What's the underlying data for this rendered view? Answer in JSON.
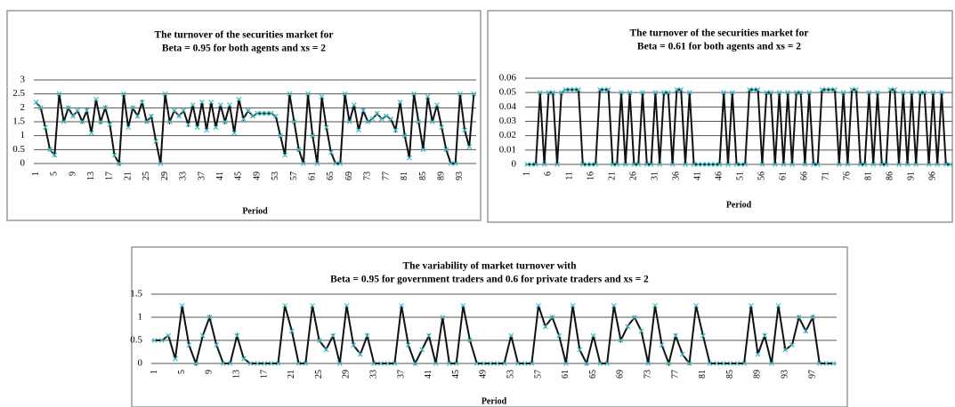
{
  "chart_data": [
    {
      "type": "line",
      "title": [
        "The turnover of the securities market for",
        "Beta = 0.95 for both agents and xs = 2"
      ],
      "x_label": "Period",
      "color": "#111111",
      "marker_color": "#3fbcc4",
      "ylim": [
        0,
        3
      ],
      "yticks": [
        0,
        0.5,
        1,
        1.5,
        2,
        2.5,
        3
      ],
      "grid": true,
      "categories": [
        "1",
        null,
        null,
        null,
        "5",
        null,
        null,
        null,
        "9",
        null,
        null,
        null,
        "13",
        null,
        null,
        null,
        "17",
        null,
        null,
        null,
        "21",
        null,
        null,
        null,
        "25",
        null,
        null,
        null,
        "29",
        null,
        null,
        null,
        "33",
        null,
        null,
        null,
        "37",
        null,
        null,
        null,
        "41",
        null,
        null,
        null,
        "45",
        null,
        null,
        null,
        "49",
        null,
        null,
        null,
        "53",
        null,
        null,
        null,
        "57",
        null,
        null,
        null,
        "61",
        null,
        null,
        null,
        "65",
        null,
        null,
        null,
        "69",
        null,
        null,
        null,
        "73",
        null,
        null,
        null,
        "77",
        null,
        null,
        null,
        "81",
        null,
        null,
        null,
        "85",
        null,
        null,
        null,
        "89",
        null,
        null,
        null,
        "93",
        null,
        null,
        null
      ],
      "values": [
        2.2,
        2.0,
        1.3,
        0.5,
        0.3,
        2.5,
        1.5,
        2.0,
        1.7,
        1.9,
        1.5,
        1.9,
        1.1,
        2.3,
        1.5,
        2.0,
        1.4,
        0.3,
        0,
        2.5,
        1.3,
        2.0,
        1.7,
        2.2,
        1.5,
        1.7,
        0.8,
        0,
        2.5,
        1.5,
        1.9,
        1.7,
        1.9,
        1.4,
        2.1,
        1.3,
        2.2,
        1.2,
        2.2,
        1.3,
        2.1,
        1.5,
        2.1,
        1.1,
        2.3,
        1.6,
        1.9,
        1.7,
        1.8,
        1.8,
        1.8,
        1.8,
        1.7,
        1.0,
        0.3,
        2.5,
        1.5,
        0.5,
        0,
        2.5,
        1.0,
        0,
        2.4,
        1.3,
        0.4,
        0,
        0,
        2.5,
        1.5,
        2.1,
        1.2,
        1.9,
        1.5,
        1.6,
        1.8,
        1.6,
        1.7,
        1.6,
        1.2,
        2.2,
        1.0,
        0.2,
        2.5,
        1.5,
        0.5,
        2.4,
        1.5,
        2.1,
        1.3,
        0.5,
        0,
        0,
        2.5,
        1.2,
        0.6,
        2.5
      ]
    },
    {
      "type": "line",
      "title": [
        "The turnover of the securities market for",
        "Beta = 0.61 for both agents and xs = 2"
      ],
      "x_label": "Period",
      "color": "#111111",
      "marker_color": "#3fbcc4",
      "ylim": [
        0,
        0.06
      ],
      "yticks": [
        0,
        0.01,
        0.02,
        0.03,
        0.04,
        0.05,
        0.06
      ],
      "grid": true,
      "categories": [
        "1",
        null,
        null,
        null,
        null,
        "6",
        null,
        null,
        null,
        null,
        "11",
        null,
        null,
        null,
        null,
        "16",
        null,
        null,
        null,
        null,
        "21",
        null,
        null,
        null,
        null,
        "26",
        null,
        null,
        null,
        null,
        "31",
        null,
        null,
        null,
        null,
        "36",
        null,
        null,
        null,
        null,
        "41",
        null,
        null,
        null,
        null,
        "46",
        null,
        null,
        null,
        null,
        "51",
        null,
        null,
        null,
        null,
        "56",
        null,
        null,
        null,
        null,
        "61",
        null,
        null,
        null,
        null,
        "66",
        null,
        null,
        null,
        null,
        "71",
        null,
        null,
        null,
        null,
        "76",
        null,
        null,
        null,
        null,
        "81",
        null,
        null,
        null,
        null,
        "86",
        null,
        null,
        null,
        null,
        "91",
        null,
        null,
        null,
        null,
        "96",
        null,
        null,
        null,
        null
      ],
      "values": [
        0,
        0,
        0,
        0.05,
        0,
        0.05,
        0.05,
        0,
        0.05,
        0.052,
        0.052,
        0.052,
        0.052,
        0,
        0,
        0,
        0,
        0.052,
        0.052,
        0.052,
        0,
        0,
        0.05,
        0,
        0.05,
        0,
        0,
        0.05,
        0,
        0,
        0.05,
        0,
        0.05,
        0.05,
        0,
        0.052,
        0.052,
        0,
        0.05,
        0,
        0,
        0,
        0,
        0,
        0,
        0,
        0.05,
        0,
        0.05,
        0,
        0,
        0,
        0.052,
        0.052,
        0.052,
        0,
        0.05,
        0.05,
        0,
        0.05,
        0,
        0.05,
        0,
        0.05,
        0.05,
        0,
        0.05,
        0,
        0,
        0.052,
        0.052,
        0.052,
        0.052,
        0,
        0.05,
        0,
        0.052,
        0.052,
        0,
        0,
        0.05,
        0,
        0.05,
        0,
        0,
        0.052,
        0.052,
        0,
        0.05,
        0,
        0.05,
        0,
        0.05,
        0.05,
        0,
        0.05,
        0,
        0.05,
        0,
        0
      ]
    },
    {
      "type": "line",
      "title": [
        "The variability of market turnover with",
        "Beta = 0.95 for government traders and 0.6 for private traders and xs = 2"
      ],
      "x_label": "Period",
      "color": "#111111",
      "marker_color": "#3fbcc4",
      "ylim": [
        0,
        1.5
      ],
      "yticks": [
        0,
        0.5,
        1,
        1.5
      ],
      "grid": true,
      "categories": [
        "1",
        null,
        null,
        null,
        "5",
        null,
        null,
        null,
        "9",
        null,
        null,
        null,
        "13",
        null,
        null,
        null,
        "17",
        null,
        null,
        null,
        "21",
        null,
        null,
        null,
        "25",
        null,
        null,
        null,
        "29",
        null,
        null,
        null,
        "33",
        null,
        null,
        null,
        "37",
        null,
        null,
        null,
        "41",
        null,
        null,
        null,
        "45",
        null,
        null,
        null,
        "49",
        null,
        null,
        null,
        "53",
        null,
        null,
        null,
        "57",
        null,
        null,
        null,
        "61",
        null,
        null,
        null,
        "65",
        null,
        null,
        null,
        "69",
        null,
        null,
        null,
        "73",
        null,
        null,
        null,
        "77",
        null,
        null,
        null,
        "81",
        null,
        null,
        null,
        "85",
        null,
        null,
        null,
        "89",
        null,
        null,
        null,
        "93",
        null,
        null,
        null,
        "97",
        null,
        null,
        null
      ],
      "values": [
        0.5,
        0.5,
        0.6,
        0.1,
        1.25,
        0.4,
        0,
        0.6,
        1.0,
        0.4,
        0,
        0,
        0.6,
        0.1,
        0,
        0,
        0,
        0,
        0,
        1.25,
        0.7,
        0,
        0,
        1.25,
        0.5,
        0.3,
        0.6,
        0,
        1.25,
        0.4,
        0.2,
        0.6,
        0,
        0,
        0,
        0,
        1.25,
        0.4,
        0,
        0.3,
        0.6,
        0,
        1.0,
        0,
        0,
        1.25,
        0.5,
        0,
        0,
        0,
        0,
        0,
        0.6,
        0,
        0,
        0,
        1.25,
        0.8,
        1.0,
        0.6,
        0,
        1.25,
        0.3,
        0,
        0.6,
        0,
        0,
        1.25,
        0.5,
        0.8,
        1.0,
        0.7,
        0,
        1.25,
        0.4,
        0,
        0.6,
        0.2,
        0,
        1.25,
        0.6,
        0,
        0,
        0,
        0,
        0,
        0,
        1.25,
        0.2,
        0.6,
        0,
        1.25,
        0.3,
        0.4,
        1.0,
        0.7,
        1.0,
        0,
        0,
        0
      ]
    }
  ]
}
